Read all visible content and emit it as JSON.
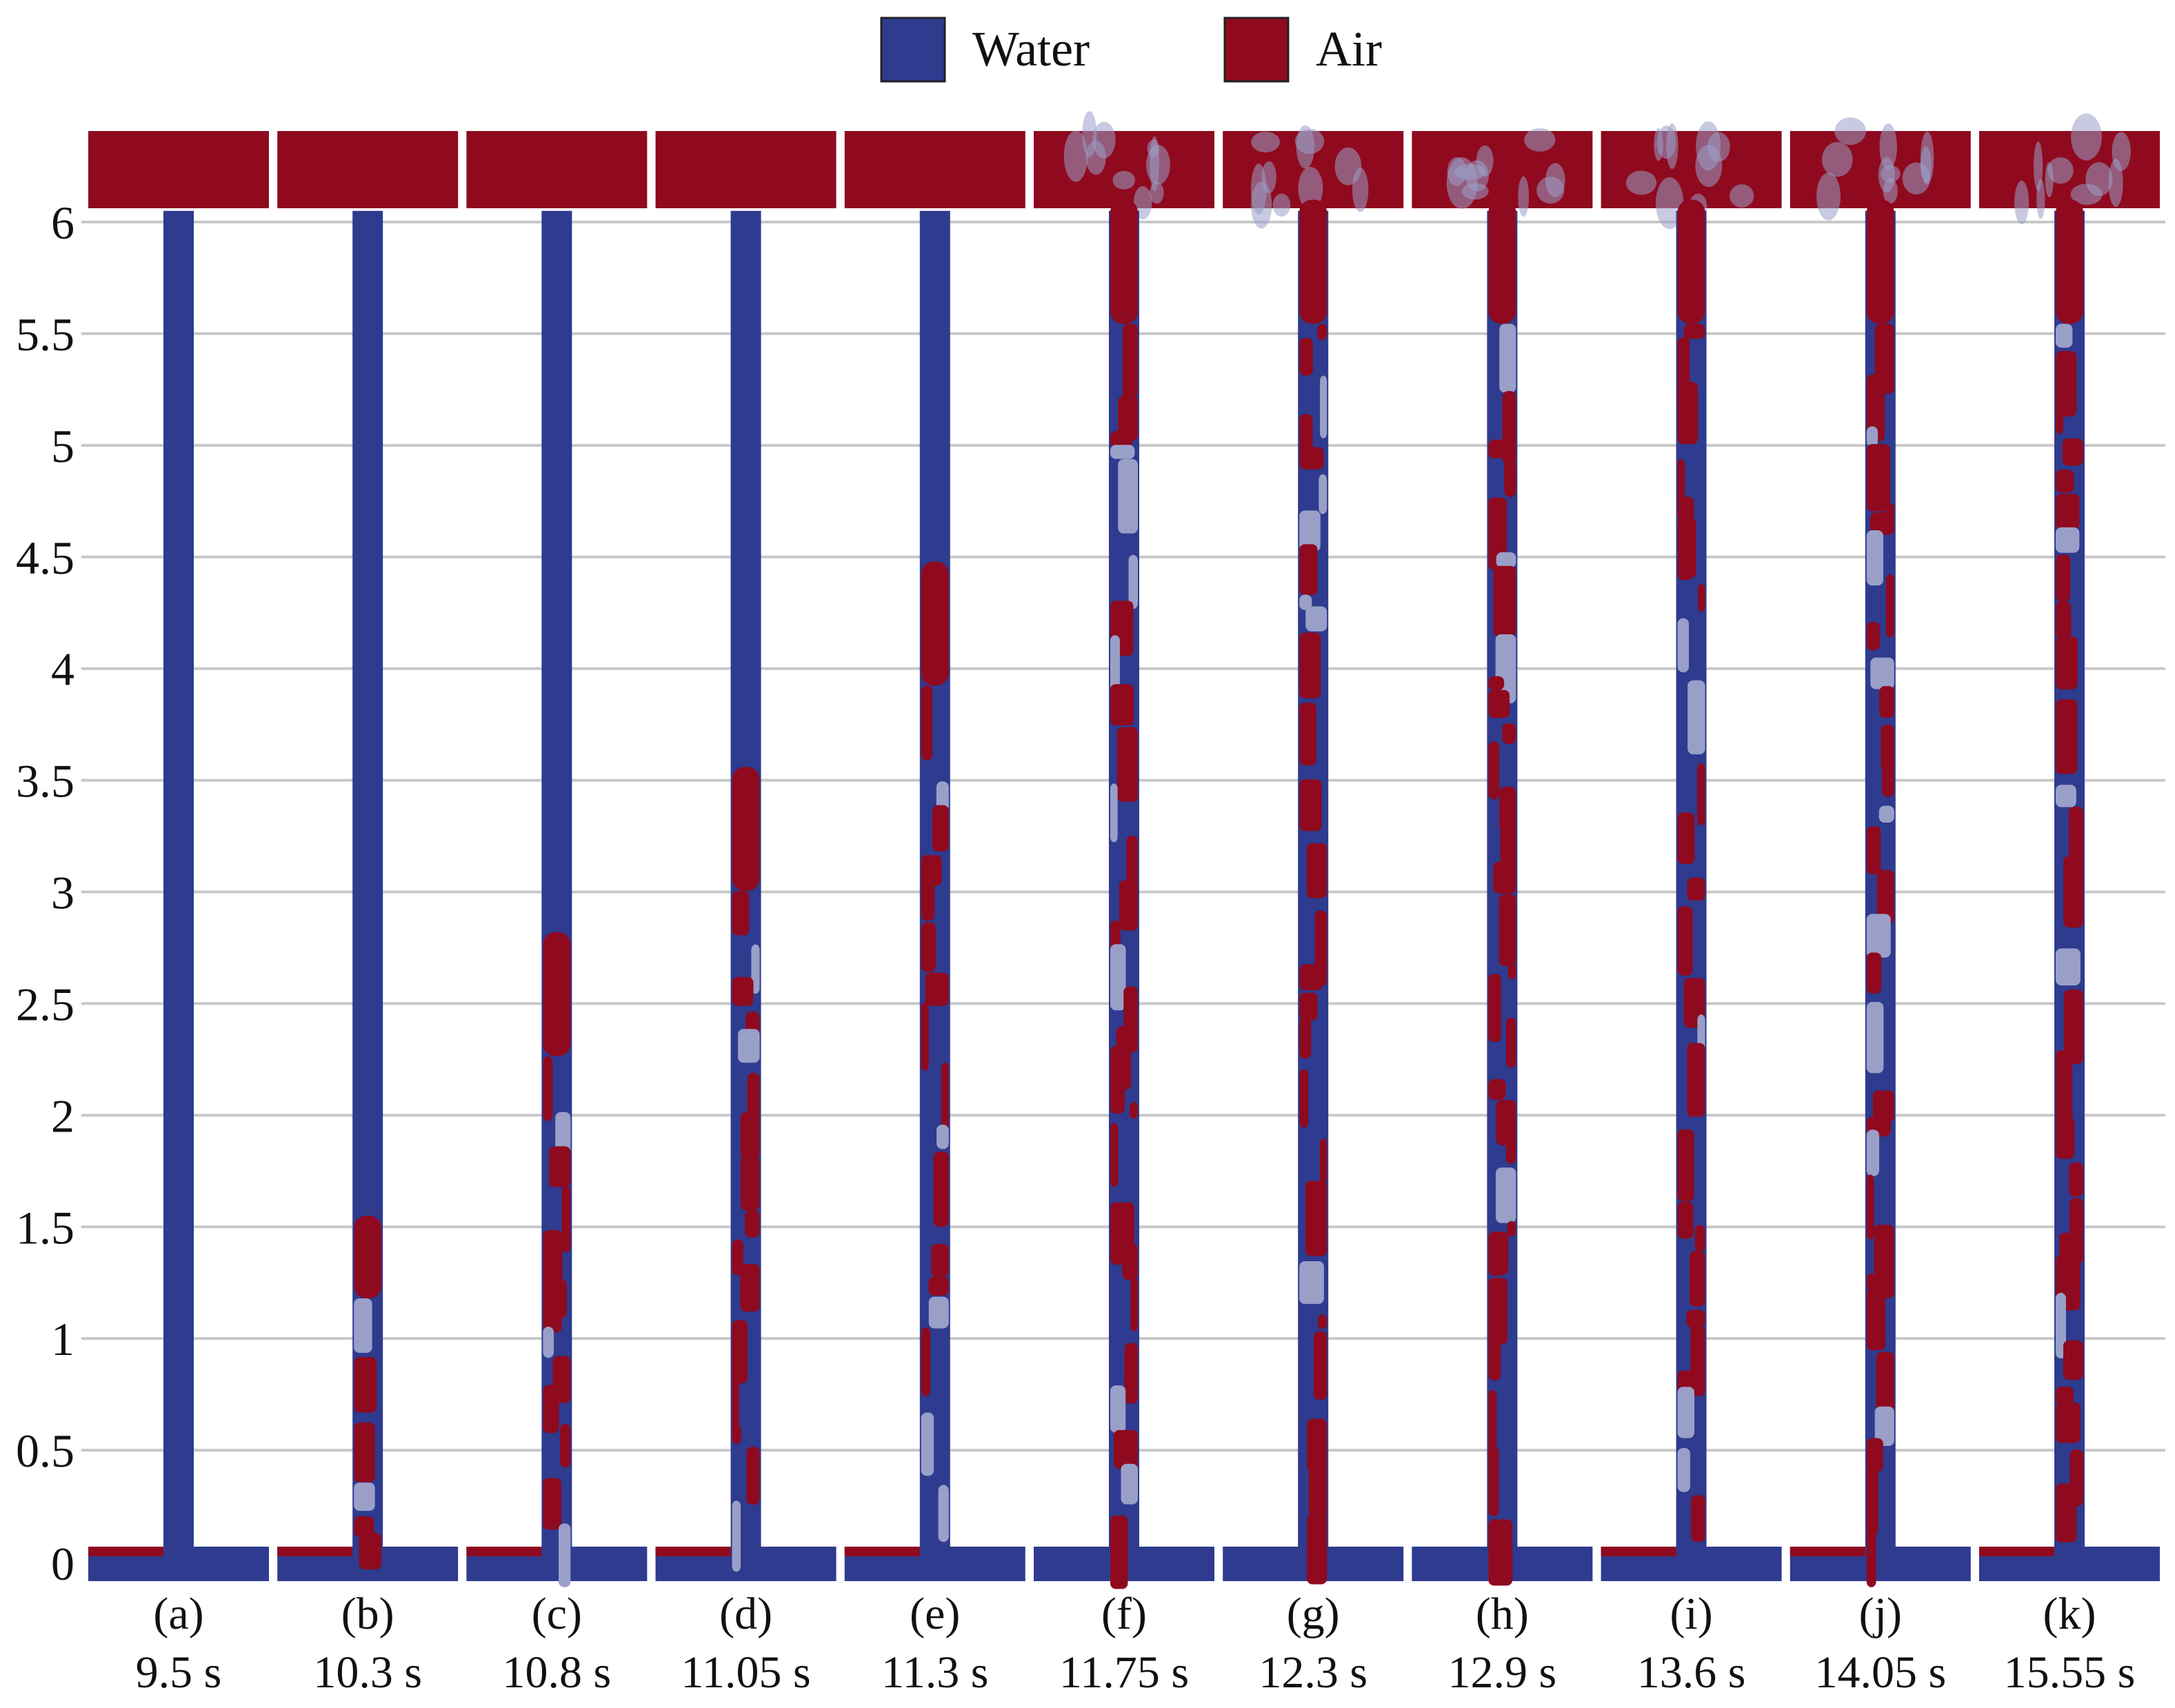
{
  "legend": {
    "water": {
      "label": "Water",
      "color": "#2e3b8f"
    },
    "air": {
      "label": "Air",
      "color": "#8f0a1e"
    }
  },
  "axis": {
    "ticks": [
      "0",
      "0.5",
      "1",
      "1.5",
      "2",
      "2.5",
      "3",
      "3.5",
      "4",
      "4.5",
      "5",
      "5.5",
      "6"
    ],
    "ymin": 0,
    "ymax": 6.4
  },
  "colors": {
    "water": "#2e3b8f",
    "air": "#8f0a1e",
    "mix": "#9a9fc8",
    "grid": "#c8c8c8"
  },
  "panels": [
    {
      "id": "(a)",
      "time": "9.5 s",
      "air_top": 0,
      "mix_top": 0,
      "pool_air": true
    },
    {
      "id": "(b)",
      "time": "10.3 s",
      "air_top": 1.55,
      "mix_top": 1.55,
      "pool_air": true
    },
    {
      "id": "(c)",
      "time": "10.8 s",
      "air_top": 2.82,
      "mix_top": 2.82,
      "pool_air": true
    },
    {
      "id": "(d)",
      "time": "11.05 s",
      "air_top": 3.56,
      "mix_top": 3.56,
      "pool_air": true
    },
    {
      "id": "(e)",
      "time": "11.3 s",
      "air_top": 4.48,
      "mix_top": 4.48,
      "pool_air": true
    },
    {
      "id": "(f)",
      "time": "11.75 s",
      "air_top": 6.1,
      "mix_top": 6.1,
      "pool_air": false
    },
    {
      "id": "(g)",
      "time": "12.3 s",
      "air_top": 6.1,
      "mix_top": 6.1,
      "pool_air": false
    },
    {
      "id": "(h)",
      "time": "12.9 s",
      "air_top": 6.1,
      "mix_top": 6.1,
      "pool_air": false
    },
    {
      "id": "(i)",
      "time": "13.6 s",
      "air_top": 6.1,
      "mix_top": 6.1,
      "pool_air": true
    },
    {
      "id": "(j)",
      "time": "14.05 s",
      "air_top": 6.1,
      "mix_top": 6.1,
      "pool_air": true
    },
    {
      "id": "(k)",
      "time": "15.55 s",
      "air_top": 6.1,
      "mix_top": 6.1,
      "pool_air": true
    }
  ]
}
